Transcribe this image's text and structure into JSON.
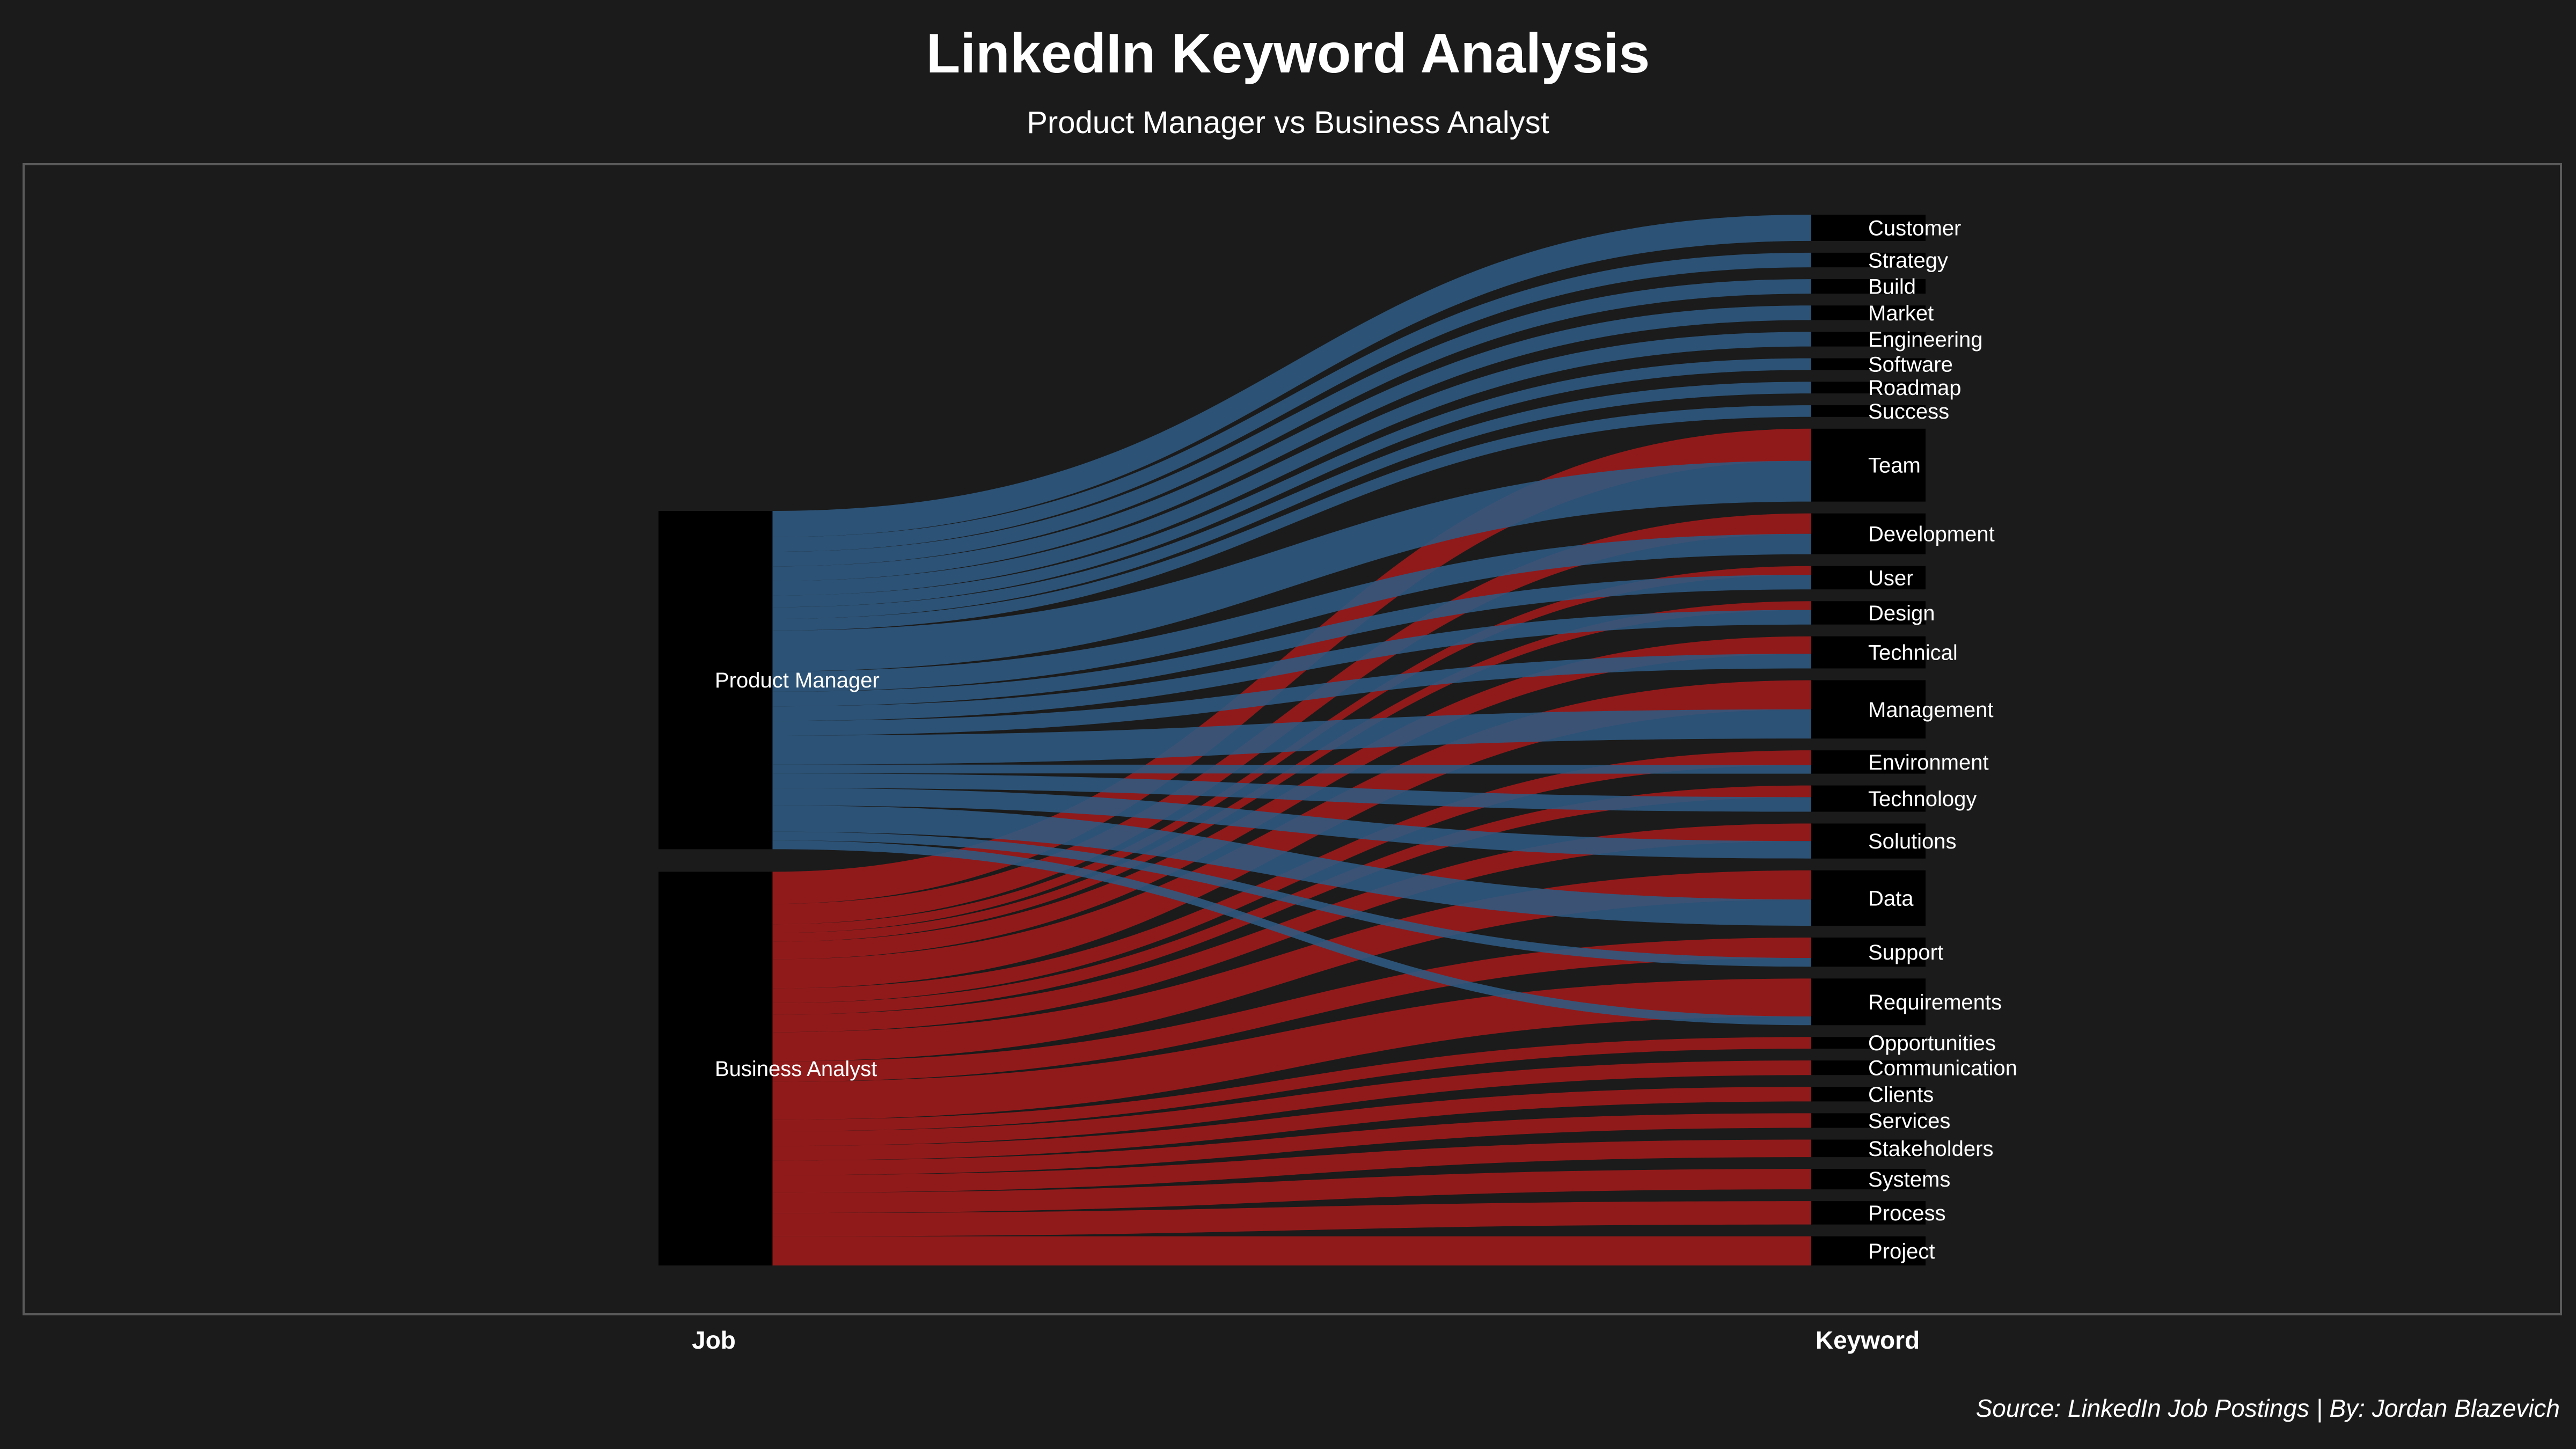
{
  "chart_data": {
    "type": "sankey",
    "title": "LinkedIn Keyword Analysis",
    "subtitle": "Product Manager vs Business Analyst",
    "axis_labels": [
      "Job",
      "Keyword"
    ],
    "caption": "Source: LinkedIn Job Postings | By: Jordan Blazevich",
    "colors": {
      "background": "#1b1b1b",
      "panel_border": "#5a5a5a",
      "node": "#000000",
      "Product Manager": "#2f5a82",
      "Business Analyst": "#a01a1a"
    },
    "jobs": [
      "Product Manager",
      "Business Analyst"
    ],
    "keywords": [
      {
        "name": "Customer",
        "Product Manager": 9,
        "Business Analyst": 0
      },
      {
        "name": "Strategy",
        "Product Manager": 5,
        "Business Analyst": 0
      },
      {
        "name": "Build",
        "Product Manager": 5,
        "Business Analyst": 0
      },
      {
        "name": "Market",
        "Product Manager": 5,
        "Business Analyst": 0
      },
      {
        "name": "Engineering",
        "Product Manager": 5,
        "Business Analyst": 0
      },
      {
        "name": "Software",
        "Product Manager": 4,
        "Business Analyst": 0
      },
      {
        "name": "Roadmap",
        "Product Manager": 4,
        "Business Analyst": 0
      },
      {
        "name": "Success",
        "Product Manager": 4,
        "Business Analyst": 0
      },
      {
        "name": "Team",
        "Product Manager": 14,
        "Business Analyst": 11
      },
      {
        "name": "Development",
        "Product Manager": 7,
        "Business Analyst": 7
      },
      {
        "name": "User",
        "Product Manager": 5,
        "Business Analyst": 3
      },
      {
        "name": "Design",
        "Product Manager": 5,
        "Business Analyst": 3
      },
      {
        "name": "Technical",
        "Product Manager": 5,
        "Business Analyst": 6
      },
      {
        "name": "Management",
        "Product Manager": 10,
        "Business Analyst": 10
      },
      {
        "name": "Environment",
        "Product Manager": 3,
        "Business Analyst": 5
      },
      {
        "name": "Technology",
        "Product Manager": 5,
        "Business Analyst": 4
      },
      {
        "name": "Solutions",
        "Product Manager": 6,
        "Business Analyst": 6
      },
      {
        "name": "Data",
        "Product Manager": 9,
        "Business Analyst": 10
      },
      {
        "name": "Support",
        "Product Manager": 3,
        "Business Analyst": 7
      },
      {
        "name": "Requirements",
        "Product Manager": 3,
        "Business Analyst": 13
      },
      {
        "name": "Opportunities",
        "Product Manager": 0,
        "Business Analyst": 4
      },
      {
        "name": "Communication",
        "Product Manager": 0,
        "Business Analyst": 5
      },
      {
        "name": "Clients",
        "Product Manager": 0,
        "Business Analyst": 5
      },
      {
        "name": "Services",
        "Product Manager": 0,
        "Business Analyst": 5
      },
      {
        "name": "Stakeholders",
        "Product Manager": 0,
        "Business Analyst": 6
      },
      {
        "name": "Systems",
        "Product Manager": 0,
        "Business Analyst": 7
      },
      {
        "name": "Process",
        "Product Manager": 0,
        "Business Analyst": 8
      },
      {
        "name": "Project",
        "Product Manager": 0,
        "Business Analyst": 10
      }
    ]
  }
}
